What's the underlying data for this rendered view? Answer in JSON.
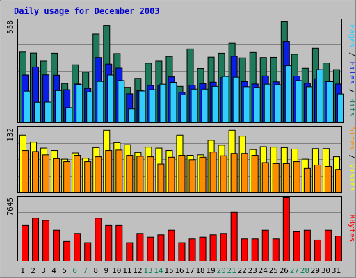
{
  "chart_data": {
    "type": "bar",
    "title": "Daily usage for December 2003",
    "categories": [
      "1",
      "2",
      "3",
      "4",
      "5",
      "6",
      "7",
      "8",
      "9",
      "10",
      "11",
      "12",
      "13",
      "14",
      "15",
      "16",
      "17",
      "18",
      "19",
      "20",
      "21",
      "22",
      "23",
      "24",
      "25",
      "26",
      "27",
      "28",
      "29",
      "30",
      "31"
    ],
    "weekend_days": [
      "6",
      "7",
      "13",
      "14",
      "20",
      "21",
      "27",
      "28"
    ],
    "panels": [
      {
        "id": "hits-files-pages",
        "max_label": "558",
        "ymax": 558,
        "series": [
          {
            "name": "Hits",
            "color": "#1e7a5a",
            "values": [
              386,
              381,
              336,
              380,
              214,
              316,
              276,
              484,
              531,
              378,
              193,
              242,
              325,
              336,
              362,
              198,
              403,
              296,
              358,
              380,
              434,
              354,
              384,
              356,
              357,
              554,
              374,
              297,
              407,
              326,
              290
            ]
          },
          {
            "name": "Files",
            "color": "#0a1ee6",
            "values": [
              260,
              304,
              261,
              259,
              180,
              211,
              187,
              356,
              320,
              298,
              158,
              175,
              203,
              204,
              250,
              166,
              205,
              213,
              221,
              246,
              363,
              224,
              211,
              255,
              223,
              444,
              254,
              215,
              240,
              225,
              211
            ]
          },
          {
            "name": "Pages",
            "color": "#33ccff",
            "values": [
              172,
              111,
              112,
              175,
              82,
              207,
              168,
              225,
              260,
              230,
              75,
              173,
              180,
              210,
              220,
              152,
              183,
              183,
              198,
              252,
              248,
              196,
              192,
              210,
              207,
              311,
              230,
              196,
              290,
              224,
              157
            ]
          }
        ],
        "labels": [
          {
            "text": "Pages",
            "color": "#33ccff"
          },
          {
            "text": " / ",
            "color": "#000000"
          },
          {
            "text": "Files",
            "color": "#0a1ee6"
          },
          {
            "text": " / ",
            "color": "#000000"
          },
          {
            "text": "Hits",
            "color": "#1e7a5a"
          }
        ]
      },
      {
        "id": "visits-sites",
        "max_label": "132",
        "ymax": 132,
        "series": [
          {
            "name": "Visits",
            "color": "#ffff00",
            "values": [
              118,
              103,
              91,
              86,
              68,
              81,
              70,
              92,
              128,
              102,
              98,
              82,
              93,
              91,
              86,
              118,
              76,
              77,
              107,
              97,
              128,
              116,
              88,
              94,
              93,
              92,
              89,
              68,
              90,
              90,
              73
            ]
          },
          {
            "name": "Sites",
            "color": "#ff8c00",
            "values": [
              86,
              84,
              77,
              69,
              63,
              76,
              63,
              73,
              86,
              87,
              76,
              74,
              73,
              58,
              72,
              76,
              67,
              72,
              83,
              75,
              80,
              80,
              76,
              61,
              59,
              59,
              63,
              49,
              56,
              53,
              47
            ]
          }
        ],
        "labels": [
          {
            "text": "Sites",
            "color": "#ff8c00"
          },
          {
            "text": " / ",
            "color": "#000000"
          },
          {
            "text": "Visits",
            "color": "#ffff00"
          }
        ]
      },
      {
        "id": "kbytes",
        "max_label": "7645",
        "ymax": 7645,
        "series": [
          {
            "name": "KBytes",
            "color": "#ff0000",
            "values": [
              4295,
              5187,
              4917,
              3719,
              2363,
              3336,
              2220,
              5187,
              4295,
              4295,
              2220,
              3336,
              2881,
              3167,
              3719,
              2220,
              2665,
              2881,
              3167,
              3336,
              5900,
              2665,
              2665,
              3719,
              2665,
              7645,
              3536,
              3719,
              2524,
              3719,
              3015
            ]
          }
        ],
        "labels": [
          {
            "text": "KBytes",
            "color": "#ff0000"
          }
        ]
      }
    ]
  }
}
